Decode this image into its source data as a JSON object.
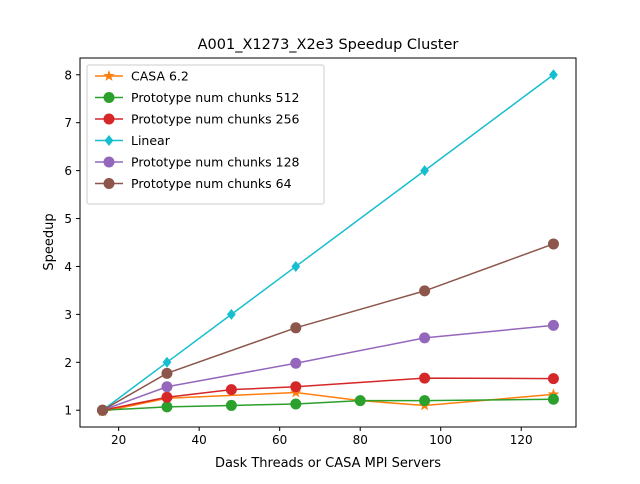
{
  "chart_data": {
    "type": "line",
    "title": "A001_X1273_X2e3 Speedup Cluster",
    "xlabel": "Dask Threads or CASA MPI Servers",
    "ylabel": "Speedup",
    "xlim": [
      10.4,
      133.6
    ],
    "ylim": [
      0.65,
      8.35
    ],
    "xticks": [
      20,
      40,
      60,
      80,
      100,
      120
    ],
    "yticks": [
      1,
      2,
      3,
      4,
      5,
      6,
      7,
      8
    ],
    "grid": false,
    "legend_position": "top-left",
    "series": [
      {
        "name": "CASA 6.2",
        "color": "#ff7f0e",
        "marker": "star",
        "x": [
          16,
          32,
          64,
          80,
          96,
          128
        ],
        "y": [
          0.97,
          1.25,
          1.37,
          1.2,
          1.1,
          1.33
        ]
      },
      {
        "name": "Prototype num chunks 512",
        "color": "#2ca02c",
        "marker": "circle",
        "x": [
          16,
          32,
          48,
          64,
          80,
          96,
          128
        ],
        "y": [
          1.0,
          1.07,
          1.1,
          1.13,
          1.2,
          1.2,
          1.23
        ]
      },
      {
        "name": "Prototype num chunks 256",
        "color": "#d62728",
        "marker": "circle",
        "x": [
          16,
          32,
          48,
          64,
          96,
          128
        ],
        "y": [
          1.0,
          1.27,
          1.43,
          1.49,
          1.67,
          1.66
        ]
      },
      {
        "name": "Linear",
        "color": "#17becf",
        "marker": "diamond",
        "x": [
          16,
          32,
          48,
          64,
          96,
          128
        ],
        "y": [
          1,
          2,
          3,
          4,
          6,
          8
        ]
      },
      {
        "name": "Prototype num chunks 128",
        "color": "#9467bd",
        "marker": "circle",
        "x": [
          16,
          32,
          64,
          96,
          128
        ],
        "y": [
          1.0,
          1.49,
          1.98,
          2.51,
          2.77
        ]
      },
      {
        "name": "Prototype num chunks 64",
        "color": "#8c564b",
        "marker": "circle",
        "x": [
          16,
          32,
          64,
          96,
          128
        ],
        "y": [
          1.0,
          1.77,
          2.72,
          3.49,
          4.47
        ]
      }
    ]
  }
}
